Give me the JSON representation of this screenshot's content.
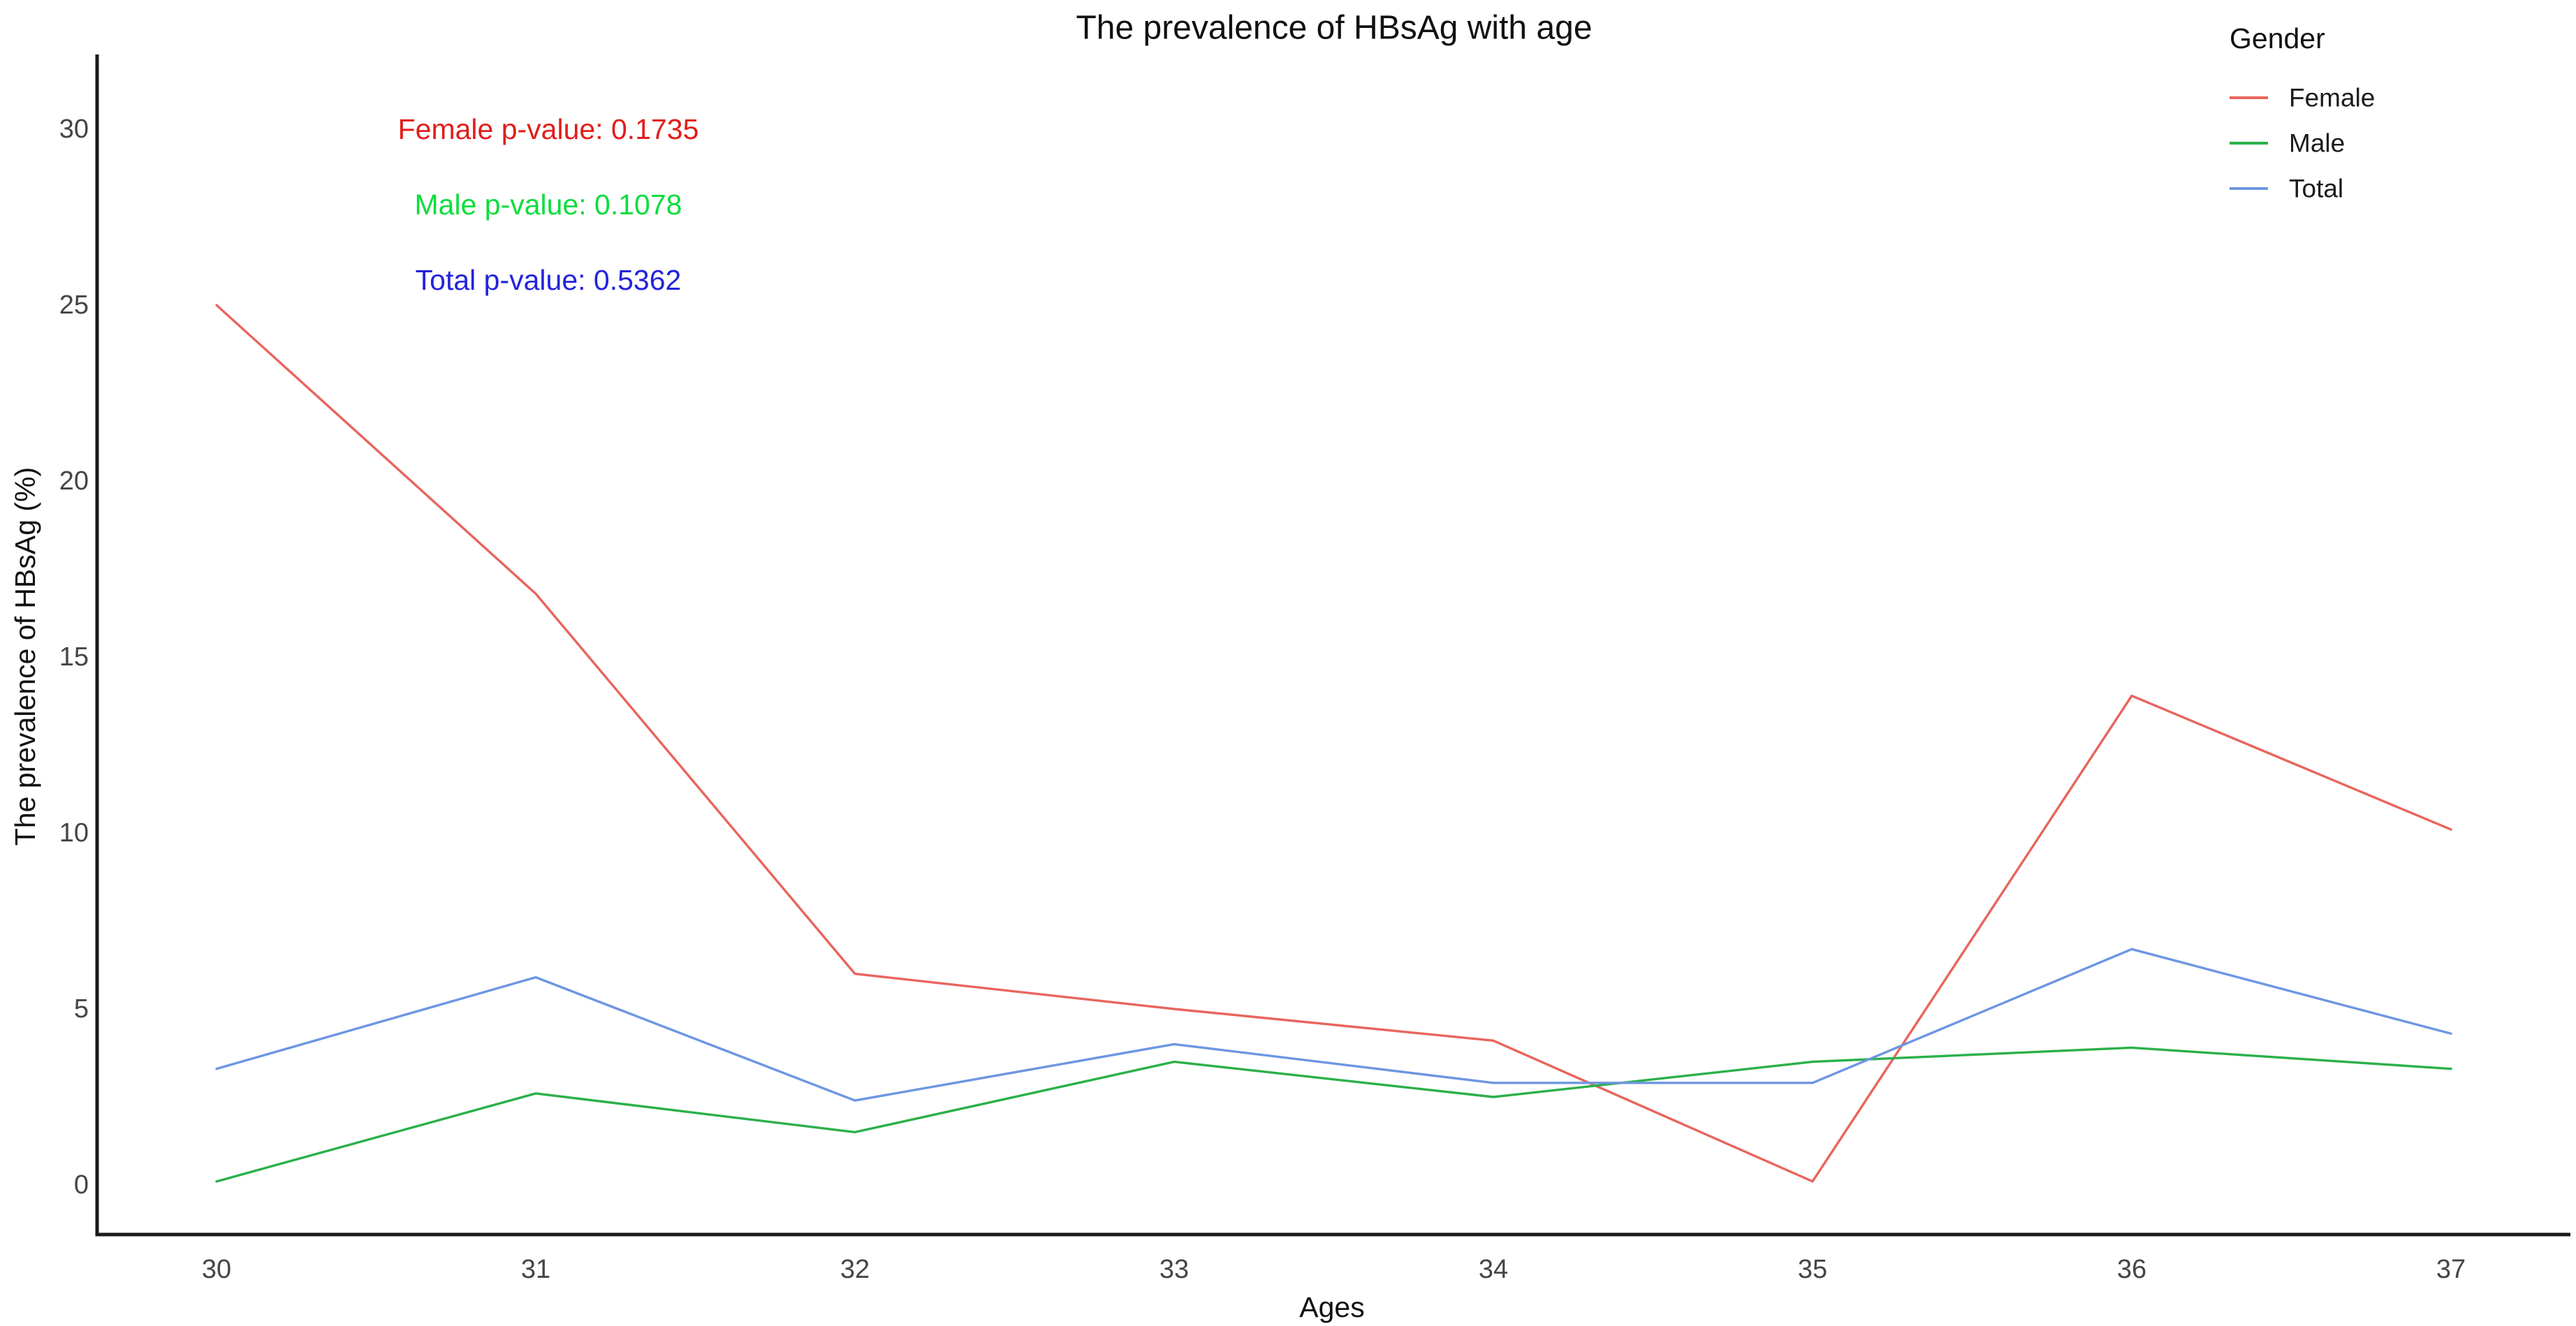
{
  "title": "The prevalence of HBsAg with age",
  "annotations": [
    {
      "id": "female-p-value",
      "text": "Female p-value: 0.1735",
      "color": "#e01e1a"
    },
    {
      "id": "male-p-value",
      "text": "Male p-value: 0.1078",
      "color": "#0bdd3c"
    },
    {
      "id": "total-p-value",
      "text": "Total p-value: 0.5362",
      "color": "#2323dd"
    }
  ],
  "legend": {
    "title": "Gender",
    "position": "top-right"
  },
  "chart_data": {
    "type": "line",
    "x": [
      30,
      31,
      32,
      33,
      34,
      35,
      36,
      37
    ],
    "xlabel": "Ages",
    "ylabel": "The prevalence of HBsAg (%)",
    "ylim": [
      0,
      31
    ],
    "yticks": [
      0,
      5,
      10,
      15,
      20,
      25,
      30
    ],
    "grid": false,
    "legend_position": "top-right",
    "series": [
      {
        "name": "Female",
        "color": "#e8655d",
        "values": [
          25.0,
          16.8,
          6.0,
          5.0,
          4.1,
          0.1,
          13.9,
          10.1
        ]
      },
      {
        "name": "Male",
        "color": "#2bb04a",
        "values": [
          0.1,
          2.6,
          1.5,
          3.5,
          2.5,
          3.5,
          3.9,
          3.3
        ]
      },
      {
        "name": "Total",
        "color": "#6d96e2",
        "values": [
          3.3,
          5.9,
          2.4,
          4.0,
          2.9,
          2.9,
          6.7,
          4.3
        ]
      }
    ],
    "axis_color": "#1a1a1a"
  }
}
